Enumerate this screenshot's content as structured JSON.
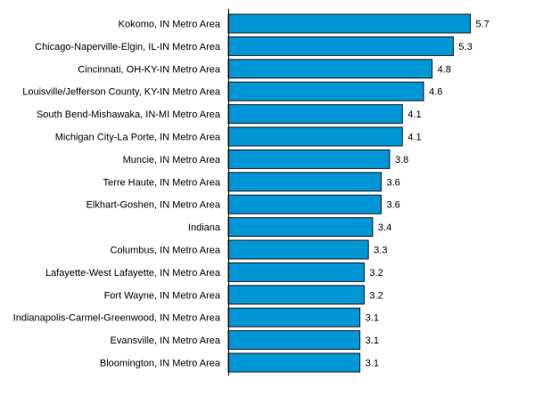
{
  "chart_data": {
    "type": "bar",
    "orientation": "horizontal",
    "title": "",
    "xlabel": "",
    "ylabel": "",
    "xlim": [
      0,
      5.9
    ],
    "grid": false,
    "legend": "none",
    "bar_color": "#0096d6",
    "bar_stroke": "#1a1a1a",
    "categories": [
      "Kokomo, IN Metro Area",
      "Chicago-Naperville-Elgin, IL-IN Metro Area",
      "Cincinnati, OH-KY-IN Metro Area",
      "Louisville/Jefferson County, KY-IN Metro Area",
      "South Bend-Mishawaka, IN-MI Metro Area",
      "Michigan City-La Porte, IN Metro Area",
      "Muncie, IN Metro Area",
      "Terre Haute, IN Metro Area",
      "Elkhart-Goshen, IN Metro Area",
      "Indiana",
      "Columbus, IN Metro Area",
      "Lafayette-West Lafayette, IN Metro Area",
      "Fort Wayne, IN Metro Area",
      "Indianapolis-Carmel-Greenwood, IN Metro Area",
      "Evansville, IN Metro Area",
      "Bloomington, IN Metro Area"
    ],
    "values": [
      5.7,
      5.3,
      4.8,
      4.6,
      4.1,
      4.1,
      3.8,
      3.6,
      3.6,
      3.4,
      3.3,
      3.2,
      3.2,
      3.1,
      3.1,
      3.1
    ],
    "value_labels": [
      "5.7",
      "5.3",
      "4.8",
      "4.6",
      "4.1",
      "4.1",
      "3.8",
      "3.6",
      "3.6",
      "3.4",
      "3.3",
      "3.2",
      "3.2",
      "3.1",
      "3.1",
      "3.1"
    ]
  }
}
